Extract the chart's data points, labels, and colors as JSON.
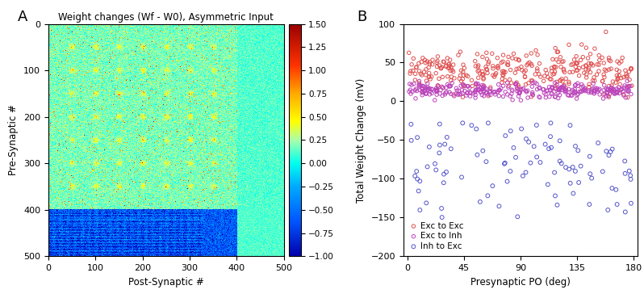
{
  "title_A": "Weight changes (Wf - W0), Asymmetric Input",
  "xlabel_A": "Post-Synaptic #",
  "ylabel_A": "Pre-Synaptic #",
  "n_exc": 400,
  "n_inh": 100,
  "n_total": 500,
  "vmin": -1.0,
  "vmax": 1.5,
  "colorbar_ticks": [
    1.5,
    1.25,
    1.0,
    0.75,
    0.5,
    0.25,
    0.0,
    -0.25,
    -0.5,
    -0.75,
    -1.0
  ],
  "xticks_A": [
    0,
    100,
    200,
    300,
    400,
    500
  ],
  "yticks_A": [
    0,
    100,
    200,
    300,
    400,
    500
  ],
  "xlabel_B": "Presynaptic PO (deg)",
  "ylabel_B": "Total Weight Change (mV)",
  "xticks_B": [
    0,
    45,
    90,
    135,
    180
  ],
  "ylim_B": [
    -200,
    100
  ],
  "yticks_B": [
    100,
    50,
    0,
    -50,
    -100,
    -150,
    -200
  ],
  "legend_labels": [
    "Exc to Exc",
    "Exc to Inh",
    "Inh to Exc"
  ],
  "exc_exc_color": "#e05050",
  "exc_inh_color": "#bb44bb",
  "inh_exc_color": "#5555cc",
  "panel_A_label": "A",
  "panel_B_label": "B",
  "seed": 42
}
